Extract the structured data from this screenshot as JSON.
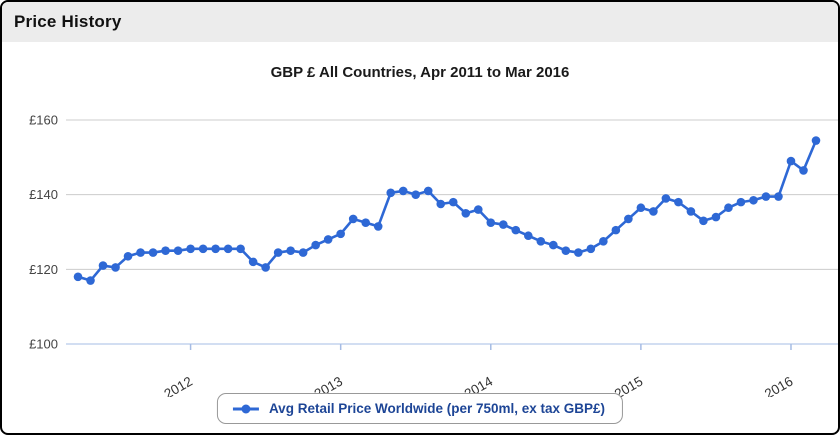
{
  "header": {
    "title": "Price History"
  },
  "legend": {
    "label": "Avg Retail Price Worldwide (per 750ml, ex tax GBP£)"
  },
  "colors": {
    "line": "#2e68d5",
    "grid": "#cccccc",
    "baseline": "#a6bce4",
    "axis_label": "#444444",
    "legend_text": "#1d4596",
    "header_bg": "#ececec"
  },
  "chart_data": {
    "type": "line",
    "title": "GBP £ All Countries, Apr 2011 to Mar 2016",
    "x_range": {
      "start": "Apr 2011",
      "end": "Mar 2016",
      "interval": "monthly"
    },
    "series": [
      {
        "name": "Avg Retail Price Worldwide (per 750ml, ex tax GBP£)",
        "color": "#2e68d5",
        "values": [
          118,
          117,
          121,
          120.5,
          123.5,
          124.5,
          124.5,
          125,
          125,
          125.5,
          125.5,
          125.5,
          125.5,
          125.5,
          122,
          120.5,
          124.5,
          125,
          124.5,
          126.5,
          128,
          129.5,
          133.5,
          132.5,
          131.5,
          140.5,
          141,
          140,
          141,
          137.5,
          138,
          135,
          136,
          132.5,
          132,
          130.5,
          129,
          127.5,
          126.5,
          125,
          124.5,
          125.5,
          127.5,
          130.5,
          133.5,
          136.5,
          135.5,
          139,
          138,
          135.5,
          133,
          134,
          136.5,
          138,
          138.5,
          139.5,
          139.5,
          149,
          146.5,
          154.5
        ]
      }
    ],
    "y_ticks": [
      {
        "value": 100,
        "label": "£100"
      },
      {
        "value": 120,
        "label": "£120"
      },
      {
        "value": 140,
        "label": "£140"
      },
      {
        "value": 160,
        "label": "£160"
      }
    ],
    "x_ticks": [
      {
        "label": "2012",
        "month_index": 9
      },
      {
        "label": "2013",
        "month_index": 21
      },
      {
        "label": "2014",
        "month_index": 33
      },
      {
        "label": "2015",
        "month_index": 45
      },
      {
        "label": "2016",
        "month_index": 57
      }
    ],
    "ylim": [
      100,
      160
    ],
    "grid": true,
    "legend_position": "bottom"
  }
}
